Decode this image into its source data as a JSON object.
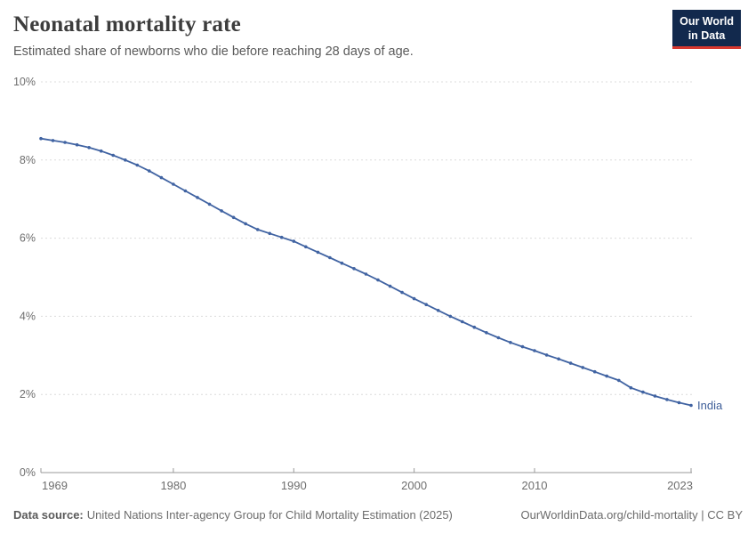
{
  "header": {
    "title": "Neonatal mortality rate",
    "subtitle": "Estimated share of newborns who die before reaching 28 days of age.",
    "logo_line1": "Our World",
    "logo_line2": "in Data"
  },
  "footer": {
    "source_label": "Data source:",
    "source_text": "United Nations Inter-agency Group for Child Mortality Estimation (2025)",
    "link_text": "OurWorldinData.org/child-mortality | CC BY"
  },
  "colors": {
    "line": "#4063a2",
    "entity_label": "#3e5e99",
    "grid": "#dcdcdc",
    "axis": "#999999",
    "logo_bg": "#12294d",
    "logo_underline": "#d7382f",
    "title": "#3d3d3d",
    "tick_label": "#6e6e6e"
  },
  "chart_data": {
    "type": "line",
    "title": "Neonatal mortality rate",
    "subtitle": "Estimated share of newborns who die before reaching 28 days of age.",
    "x": [
      1969,
      1970,
      1971,
      1972,
      1973,
      1974,
      1975,
      1976,
      1977,
      1978,
      1979,
      1980,
      1981,
      1982,
      1983,
      1984,
      1985,
      1986,
      1987,
      1988,
      1989,
      1990,
      1991,
      1992,
      1993,
      1994,
      1995,
      1996,
      1997,
      1998,
      1999,
      2000,
      2001,
      2002,
      2003,
      2004,
      2005,
      2006,
      2007,
      2008,
      2009,
      2010,
      2011,
      2012,
      2013,
      2014,
      2015,
      2016,
      2017,
      2018,
      2019,
      2020,
      2021,
      2022,
      2023
    ],
    "series": [
      {
        "name": "India",
        "unit": "%",
        "values": [
          8.55,
          8.5,
          8.45,
          8.39,
          8.32,
          8.23,
          8.12,
          8.0,
          7.87,
          7.72,
          7.55,
          7.38,
          7.21,
          7.04,
          6.87,
          6.7,
          6.53,
          6.37,
          6.22,
          6.12,
          6.02,
          5.92,
          5.78,
          5.64,
          5.5,
          5.36,
          5.22,
          5.08,
          4.93,
          4.77,
          4.61,
          4.45,
          4.3,
          4.15,
          4.0,
          3.86,
          3.72,
          3.58,
          3.45,
          3.33,
          3.22,
          3.12,
          3.01,
          2.91,
          2.8,
          2.69,
          2.58,
          2.47,
          2.36,
          2.17,
          2.06,
          1.96,
          1.87,
          1.79,
          1.72
        ]
      }
    ],
    "ylim": [
      0,
      10
    ],
    "yticks": [
      0,
      2,
      4,
      6,
      8,
      10
    ],
    "ytick_format": "{}%",
    "xticks": [
      1969,
      1980,
      1990,
      2000,
      2010,
      2023
    ],
    "xlabel": "",
    "ylabel": "",
    "grid": "horizontal-dashed",
    "legend": "end-of-line-label"
  }
}
